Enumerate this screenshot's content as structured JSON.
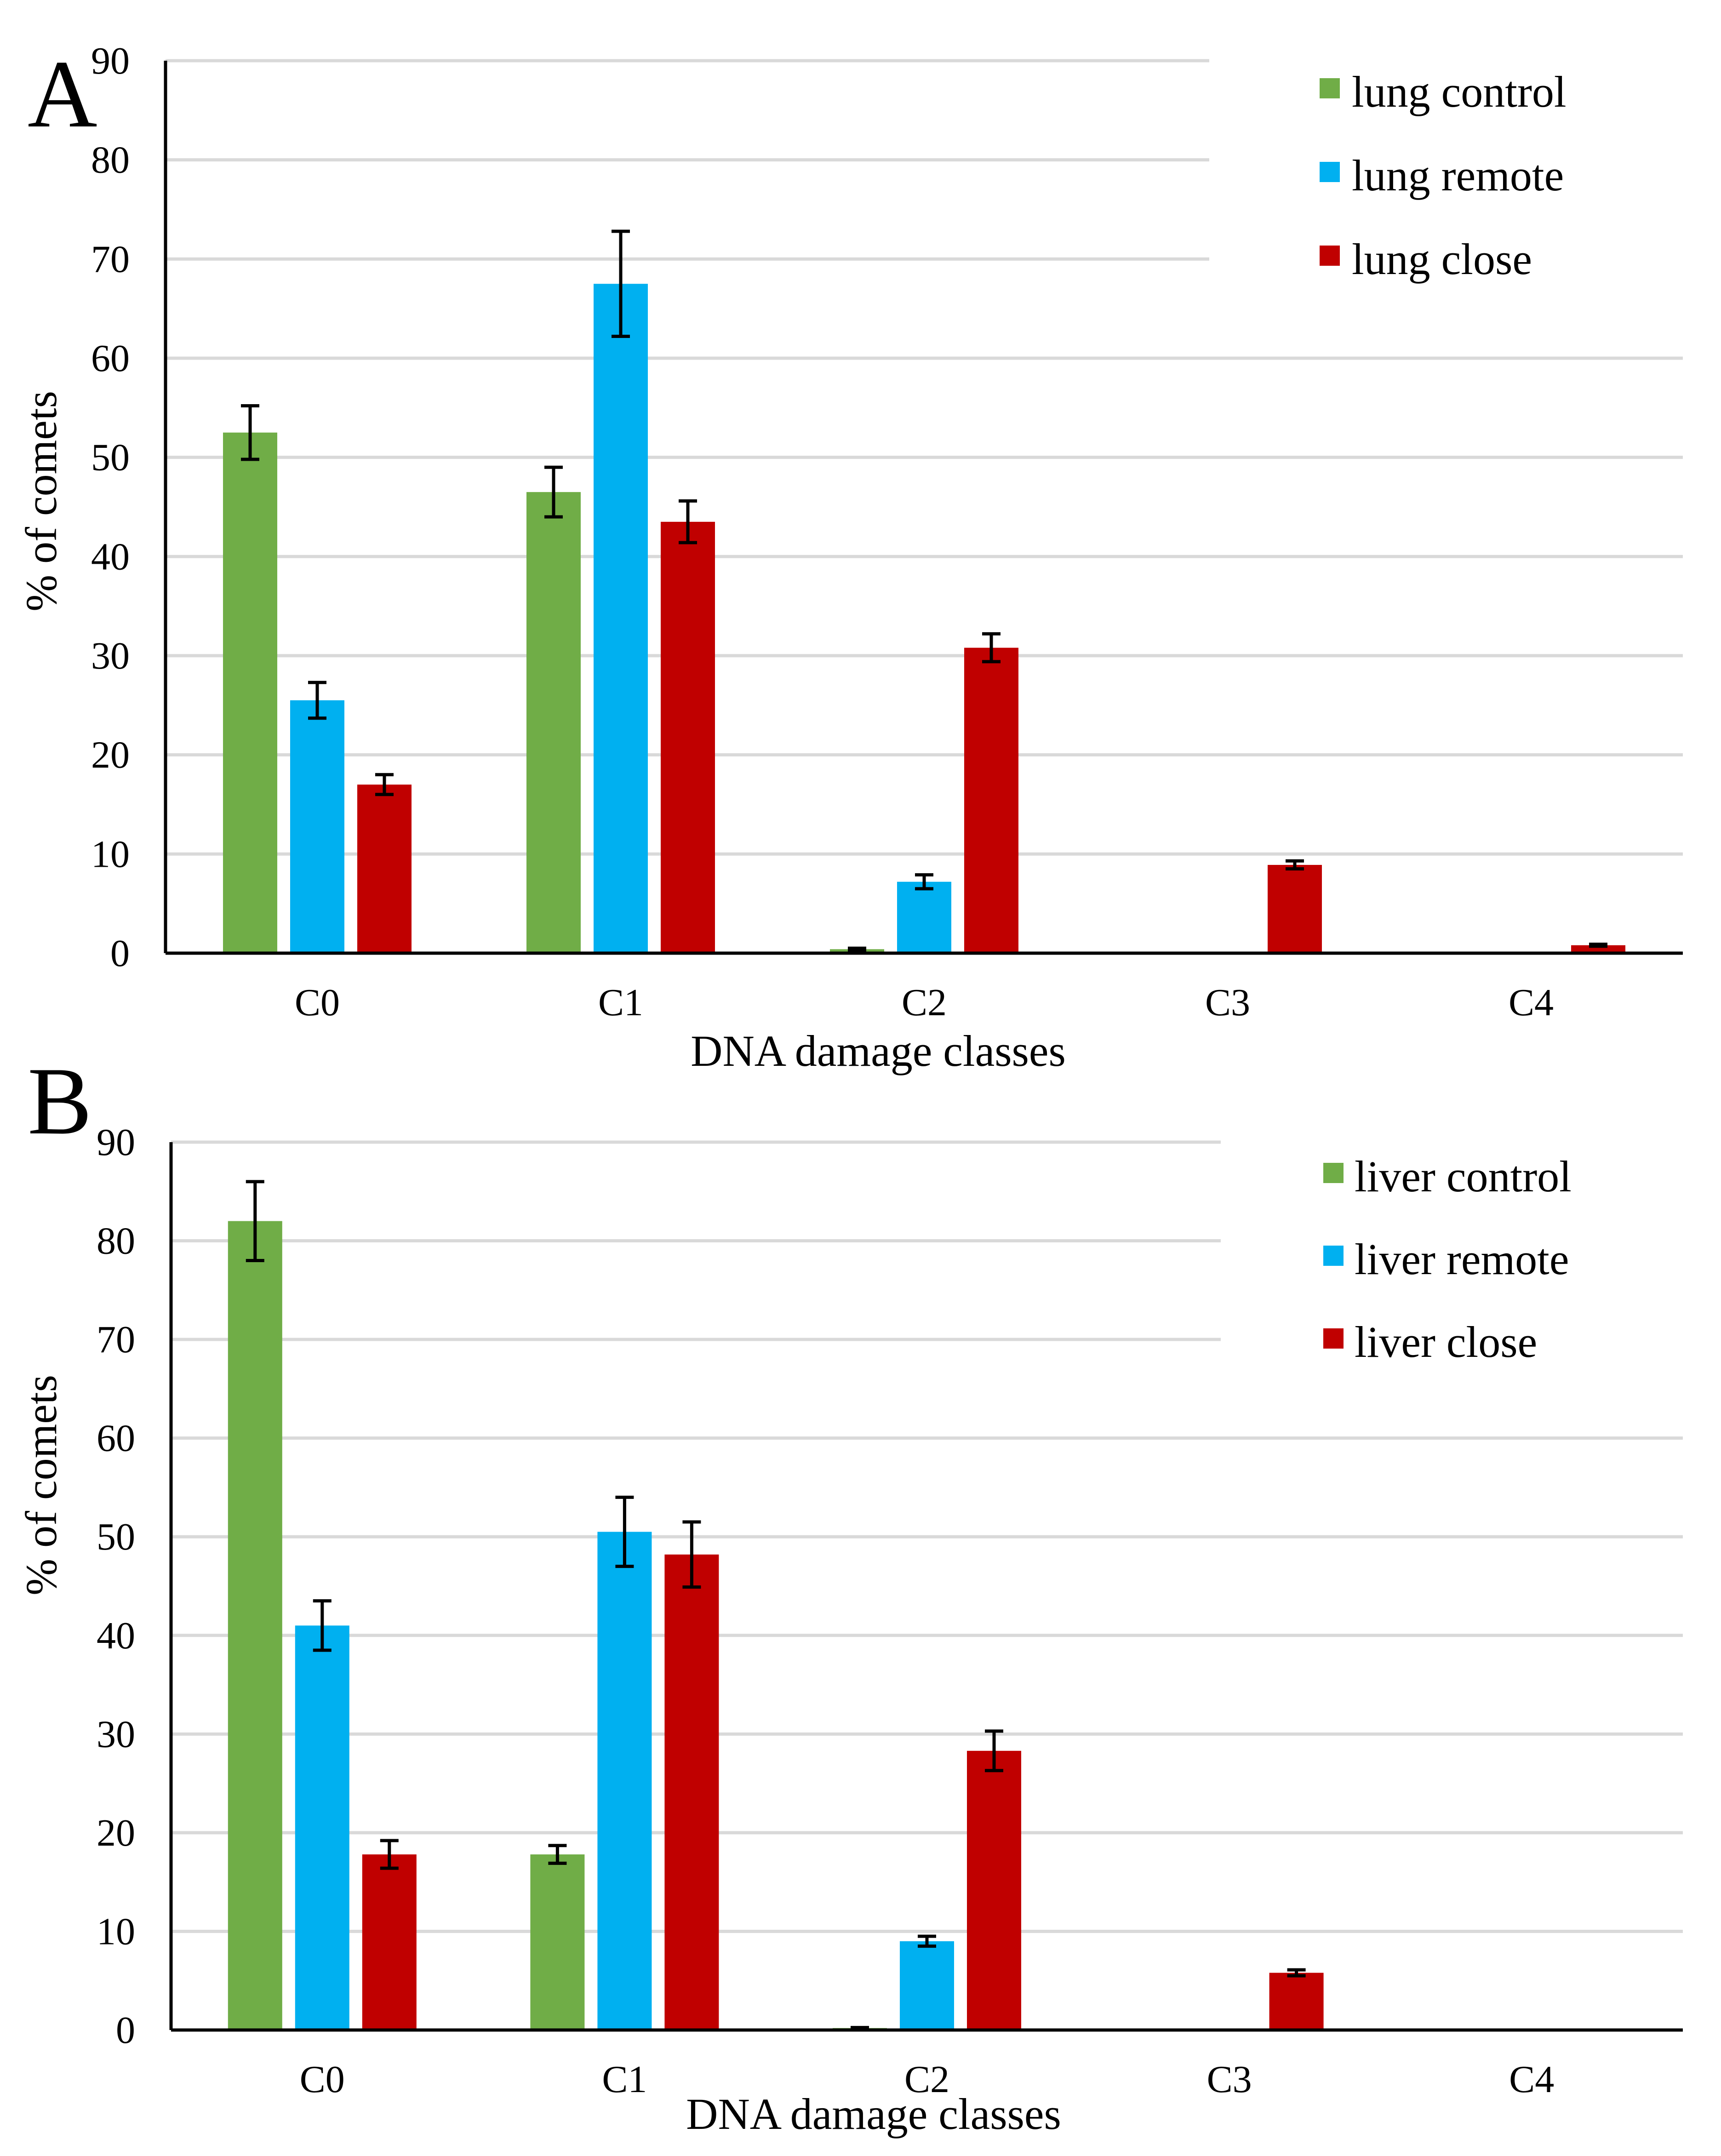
{
  "chart_data": [
    {
      "type": "bar",
      "panel_label": "A",
      "categories": [
        "C0",
        "C1",
        "C2",
        "C3",
        "C4"
      ],
      "ylim": [
        0,
        90
      ],
      "yticks": [
        0,
        10,
        20,
        30,
        40,
        50,
        60,
        70,
        80,
        90
      ],
      "ylabel": "% of comets",
      "xlabel": "DNA damage classes",
      "legend_position": "top-right",
      "series": [
        {
          "name": "lung control",
          "color": "#70ad47",
          "values": [
            52.5,
            46.5,
            0.4,
            0,
            0
          ],
          "errors": [
            2.7,
            2.5,
            0.1,
            0,
            0
          ]
        },
        {
          "name": "lung remote",
          "color": "#00b0f0",
          "values": [
            25.5,
            67.5,
            7.2,
            0,
            0
          ],
          "errors": [
            1.8,
            5.3,
            0.7,
            0,
            0
          ]
        },
        {
          "name": "lung close",
          "color": "#c00000",
          "values": [
            17.0,
            43.5,
            30.8,
            8.9,
            0.8
          ],
          "errors": [
            1.0,
            2.1,
            1.4,
            0.4,
            0.1
          ]
        }
      ]
    },
    {
      "type": "bar",
      "panel_label": "B",
      "categories": [
        "C0",
        "C1",
        "C2",
        "C3",
        "C4"
      ],
      "ylim": [
        0,
        90
      ],
      "yticks": [
        0,
        10,
        20,
        30,
        40,
        50,
        60,
        70,
        80,
        90
      ],
      "ylabel": "% of comets",
      "xlabel": "DNA damage classes",
      "legend_position": "top-right",
      "series": [
        {
          "name": "liver control",
          "color": "#70ad47",
          "values": [
            82.0,
            17.8,
            0.2,
            0,
            0
          ],
          "errors": [
            4.0,
            0.9,
            0.05,
            0,
            0
          ]
        },
        {
          "name": "liver remote",
          "color": "#00b0f0",
          "values": [
            41.0,
            50.5,
            9.0,
            0,
            0
          ],
          "errors": [
            2.5,
            3.5,
            0.5,
            0,
            0
          ]
        },
        {
          "name": "liver close",
          "color": "#c00000",
          "values": [
            17.8,
            48.2,
            28.3,
            5.8,
            0
          ],
          "errors": [
            1.4,
            3.3,
            2.0,
            0.3,
            0
          ]
        }
      ]
    }
  ]
}
